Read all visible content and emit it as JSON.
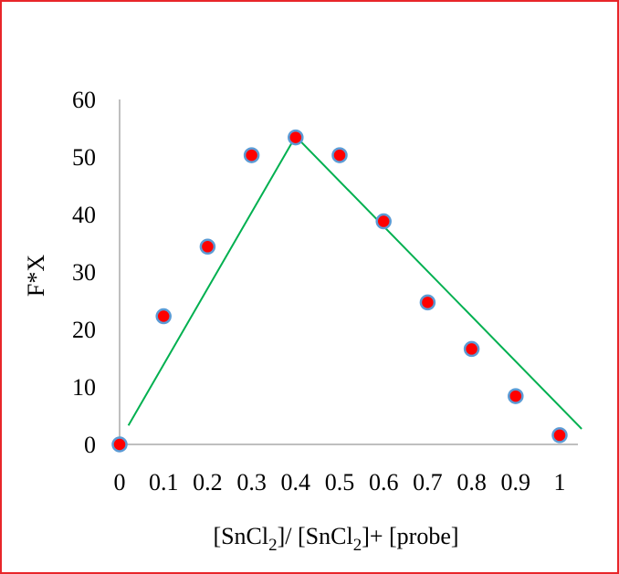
{
  "chart_data": {
    "type": "scatter",
    "title": "",
    "xlabel": "[SnCl2]/ [SnCl2]+ [probe]",
    "xlabel_parts": {
      "a": "[SnCl",
      "a_sub": "2",
      "b": "]/ [SnCl",
      "b_sub": "2",
      "c": "]+ [probe]"
    },
    "ylabel": "F*X",
    "xlim": [
      0,
      1
    ],
    "ylim": [
      0,
      60
    ],
    "x_ticks": [
      "0",
      "0.1",
      "0.2",
      "0.3",
      "0.4",
      "0.5",
      "0.6",
      "0.7",
      "0.8",
      "0.9",
      "1"
    ],
    "y_ticks": [
      "0",
      "10",
      "20",
      "30",
      "40",
      "50",
      "60"
    ],
    "grid": false,
    "legend": "none",
    "series": [
      {
        "type": "scatter",
        "marker_fill": "#ff0000",
        "marker_edge": "#5b9bd5",
        "x": [
          0,
          0.1,
          0.2,
          0.3,
          0.4,
          0.5,
          0.6,
          0.7,
          0.8,
          0.9,
          1.0
        ],
        "y": [
          0,
          22.3,
          34.4,
          50.3,
          53.4,
          50.3,
          38.8,
          24.7,
          16.6,
          8.4,
          1.6
        ]
      },
      {
        "type": "line",
        "color": "#00b050",
        "x": [
          0.02,
          0.4
        ],
        "y": [
          3.3,
          53.6
        ]
      },
      {
        "type": "line",
        "color": "#00b050",
        "x": [
          0.4,
          1.05
        ],
        "y": [
          53.6,
          2.7
        ]
      }
    ],
    "colors": {
      "frame_border": "#e8262a",
      "axis": "#bfbfbf"
    }
  }
}
